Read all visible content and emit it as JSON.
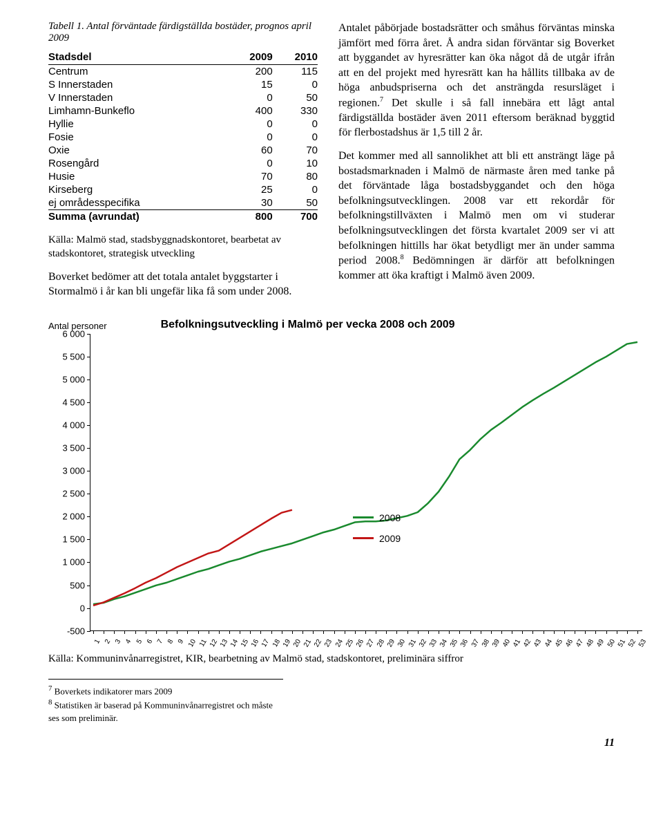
{
  "table": {
    "caption": "Tabell 1. Antal förväntade färdigställda bostäder, prognos april 2009",
    "columns": [
      "Stadsdel",
      "2009",
      "2010"
    ],
    "rows": [
      [
        "Centrum",
        "200",
        "115"
      ],
      [
        "S Innerstaden",
        "15",
        "0"
      ],
      [
        "V Innerstaden",
        "0",
        "50"
      ],
      [
        "Limhamn-Bunkeflo",
        "400",
        "330"
      ],
      [
        "Hyllie",
        "0",
        "0"
      ],
      [
        "Fosie",
        "0",
        "0"
      ],
      [
        "Oxie",
        "60",
        "70"
      ],
      [
        "Rosengård",
        "0",
        "10"
      ],
      [
        "Husie",
        "70",
        "80"
      ],
      [
        "Kirseberg",
        "25",
        "0"
      ],
      [
        "ej områdesspecifika",
        "30",
        "50"
      ]
    ],
    "sum_row": [
      "Summa (avrundat)",
      "800",
      "700"
    ]
  },
  "left_source": "Källa: Malmö stad, stadsbyggnadskontoret, bearbetat av stadskontoret, strategisk utveckling",
  "left_para": "Boverket bedömer att det totala antalet byggstarter i Stormalmö i år kan bli ungefär lika få som under 2008.",
  "right_para1_a": "Antalet påbörjade bostadsrätter och småhus förväntas minska jämfört med förra året. Å andra sidan förväntar sig Boverket att byggandet av hyresrätter kan öka något då de utgår ifrån att en del projekt med hyresrätt kan ha hållits tillbaka av de höga anbudspriserna och det ansträngda resursläget i regionen.",
  "right_para1_b": " Det skulle i så fall innebära ett lågt antal färdigställda bostäder även 2011 eftersom beräknad byggtid för flerbostadshus är 1,5 till 2 år.",
  "right_para2_a": "Det kommer med all sannolikhet att bli ett ansträngt läge på bostadsmarknaden i Malmö de närmaste åren med tanke på det förväntade låga bostadsbyggandet och den höga befolkningsutvecklingen. 2008 var ett rekordår för befolkningstillväxten i Malmö men om vi studerar befolkningsutvecklingen det första kvartalet 2009 ser vi att befolkningen hittills har ökat betydligt mer än under samma period 2008.",
  "right_para2_b": " Bedömningen är därför att befolkningen kommer att öka kraftigt i Malmö även 2009.",
  "chart": {
    "axis_label": "Antal personer",
    "title": "Befolkningsutveckling i Malmö per vecka 2008 och 2009",
    "ylim": [
      -500,
      6000
    ],
    "ytick_step": 500,
    "yticks": [
      "6 000",
      "5 500",
      "5 000",
      "4 500",
      "4 000",
      "3 500",
      "3 000",
      "2 500",
      "2 000",
      "1 500",
      "1 000",
      "500",
      "0",
      "-500"
    ],
    "xticks": [
      1,
      2,
      3,
      4,
      5,
      6,
      7,
      8,
      9,
      10,
      11,
      12,
      13,
      14,
      15,
      16,
      17,
      18,
      19,
      20,
      21,
      22,
      23,
      24,
      25,
      26,
      27,
      28,
      29,
      30,
      31,
      32,
      33,
      34,
      35,
      36,
      37,
      38,
      39,
      40,
      41,
      42,
      43,
      44,
      45,
      46,
      47,
      48,
      49,
      50,
      51,
      52,
      53
    ],
    "series": [
      {
        "name": "2008",
        "color": "#1a8a2e",
        "width": 2.5,
        "data": [
          90,
          120,
          200,
          260,
          340,
          420,
          500,
          560,
          640,
          720,
          800,
          860,
          940,
          1020,
          1080,
          1160,
          1240,
          1300,
          1360,
          1420,
          1500,
          1580,
          1660,
          1720,
          1800,
          1880,
          1900,
          1900,
          1920,
          1970,
          2020,
          2100,
          2300,
          2550,
          2880,
          3260,
          3460,
          3700,
          3900,
          4060,
          4230,
          4400,
          4550,
          4690,
          4820,
          4960,
          5100,
          5240,
          5380,
          5500,
          5640,
          5780,
          5820
        ]
      },
      {
        "name": "2009",
        "color": "#c21616",
        "width": 2.5,
        "data": [
          60,
          130,
          230,
          330,
          440,
          560,
          660,
          780,
          900,
          1000,
          1100,
          1200,
          1260,
          1400,
          1540,
          1680,
          1820,
          1960,
          2090,
          2150
        ]
      }
    ],
    "legend": [
      {
        "label": "2008",
        "color": "#1a8a2e"
      },
      {
        "label": "2009",
        "color": "#c21616"
      }
    ],
    "source": "Källa: Kommuninvånarregistret, KIR, bearbetning av Malmö stad, stadskontoret, preliminära siffror"
  },
  "footnotes": [
    {
      "num": "7",
      "text": "Boverkets indikatorer mars 2009"
    },
    {
      "num": "8",
      "text": "Statistiken är baserad på Kommuninvånarregistret och måste ses som preliminär."
    }
  ],
  "page_number": "11"
}
